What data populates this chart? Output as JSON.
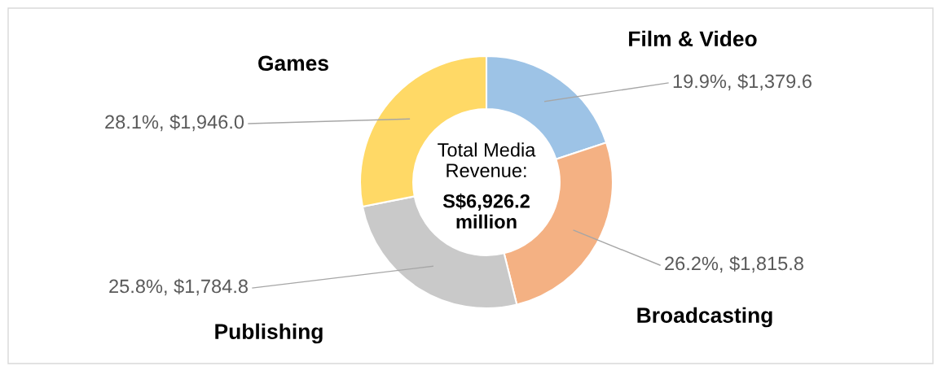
{
  "chart_data": {
    "type": "donut",
    "categories": [
      "Film & Video",
      "Broadcasting",
      "Publishing",
      "Games"
    ],
    "values": [
      1379.6,
      1815.8,
      1784.8,
      1946.0
    ],
    "value_labels": [
      "19.9%, $1,379.6",
      "26.2%, $1,815.8",
      "25.8%, $1,784.8",
      "28.1%, $1,946.0"
    ],
    "colors": [
      "#9dc3e6",
      "#f4b183",
      "#c9c9c9",
      "#ffd966"
    ],
    "annotations": [
      "Total Media Revenue:",
      "S$6,926.2 million"
    ],
    "legend": false
  }
}
